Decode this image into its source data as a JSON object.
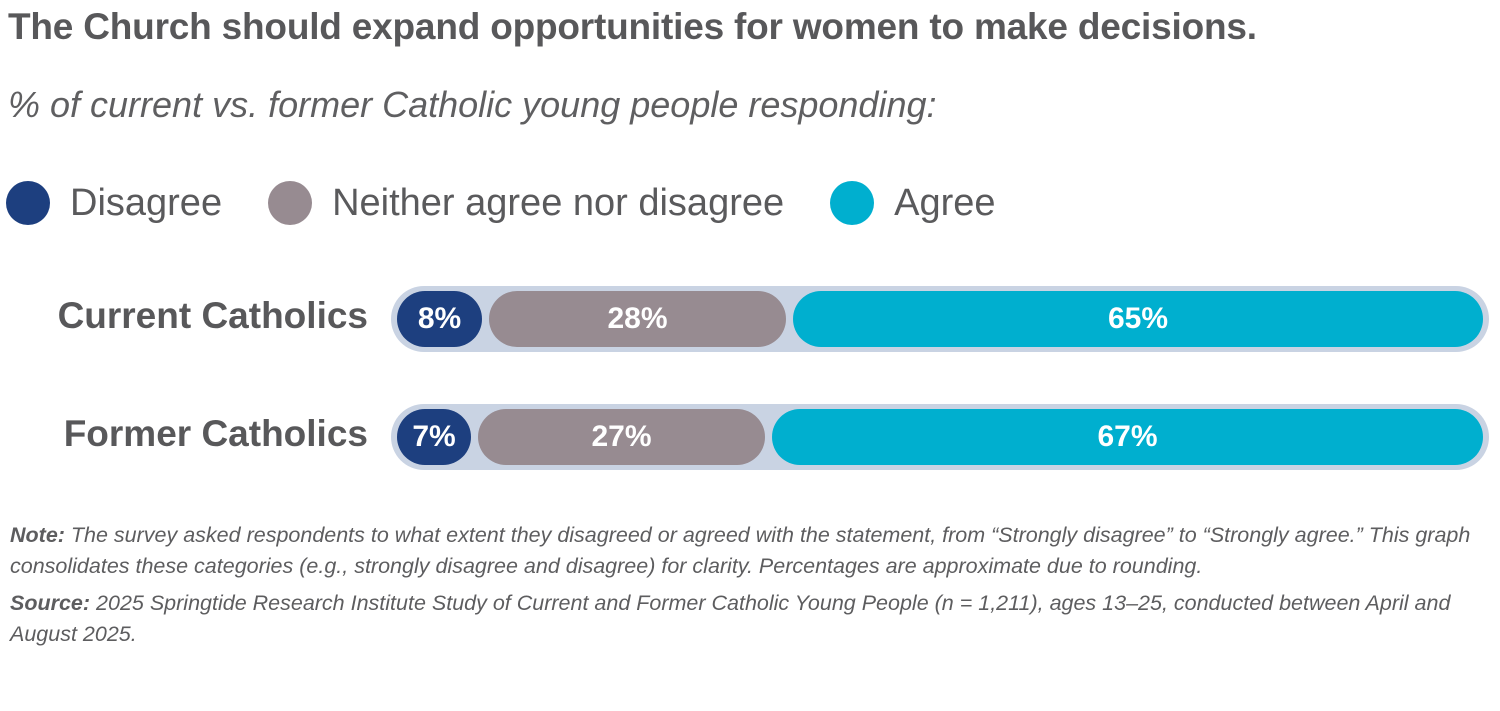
{
  "title": "The Church should expand opportunities for women to make decisions.",
  "subtitle": "% of current vs. former Catholic young people responding:",
  "colors": {
    "disagree": "#1d3f7f",
    "neither": "#978b91",
    "agree": "#00afcf",
    "track": "#c9d3e3"
  },
  "chart_data": {
    "type": "bar",
    "orientation": "horizontal-stacked",
    "title": "The Church should expand opportunities for women to make decisions.",
    "subtitle": "% of current vs. former Catholic young people responding:",
    "categories": [
      "Current Catholics",
      "Former Catholics"
    ],
    "series": [
      {
        "name": "Disagree",
        "key": "disagree",
        "values": [
          8,
          7
        ],
        "labels": [
          "8%",
          "7%"
        ]
      },
      {
        "name": "Neither agree nor disagree",
        "key": "neither",
        "values": [
          28,
          27
        ],
        "labels": [
          "28%",
          "27%"
        ]
      },
      {
        "name": "Agree",
        "key": "agree",
        "values": [
          65,
          67
        ],
        "labels": [
          "65%",
          "67%"
        ]
      }
    ],
    "xlabel": "",
    "ylabel": "",
    "xlim": [
      0,
      100
    ],
    "unit": "%",
    "grid": false,
    "legend_position": "top-left"
  },
  "notes": {
    "note_label": "Note:",
    "note_text": " The survey asked respondents to what extent they disagreed or agreed with the statement, from “Strongly disagree” to “Strongly agree.” This graph consolidates these categories (e.g., strongly disagree and disagree) for clarity. Percentages are approximate due to rounding.",
    "source_label": "Source:",
    "source_text": " 2025 Springtide Research Institute Study of Current and Former Catholic Young People (n = 1,211), ages 13–25, conducted between April and August 2025."
  }
}
